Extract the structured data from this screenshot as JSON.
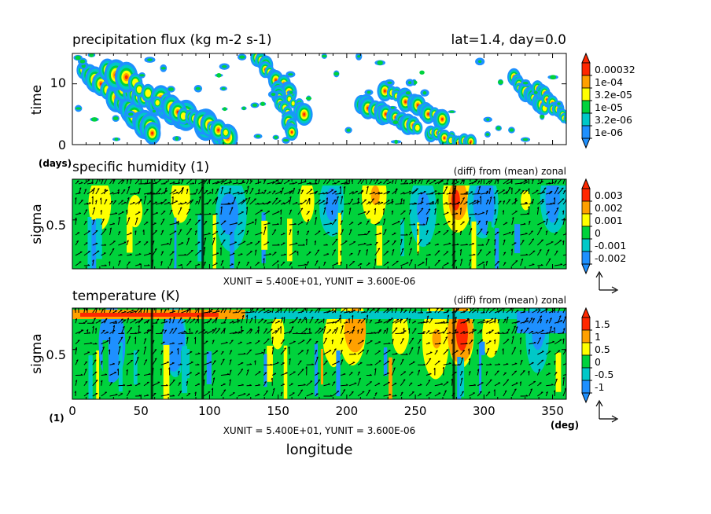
{
  "page": {
    "top_right": "lat=1.4, day=0.0",
    "xaxis_label": "longitude",
    "xaxis_unit": "(deg)",
    "sigma_unit": "(1)",
    "unit_note": "XUNIT = 5.400E+01, YUNIT = 3.600E-06"
  },
  "colors": {
    "blue": "#1e90ff",
    "cyan": "#00c8c8",
    "green": "#00d23c",
    "yellow": "#ffff00",
    "orange": "#ffa000",
    "red": "#ff2800",
    "arrows": "#000000"
  },
  "chart_data": [
    {
      "type": "heatmap",
      "title": "precipitation flux (kg m-2 s-1)",
      "ylabel": "time",
      "yunit": "(days)",
      "xlim": [
        0,
        360
      ],
      "ylim": [
        0,
        15
      ],
      "xticks": [
        0,
        50,
        100,
        150,
        200,
        250,
        300,
        350
      ],
      "yticks": [
        0,
        10
      ],
      "colorbar": {
        "labels": [
          "0.00032",
          "1e-04",
          "3.2e-05",
          "1e-05",
          "3.2e-06",
          "1e-06"
        ],
        "colors": [
          "#ff2800",
          "#ffa000",
          "#ffff00",
          "#00d23c",
          "#00c8c8",
          "#1e90ff"
        ]
      },
      "bands": [
        {
          "x0": 10,
          "t0": 12,
          "x1": 60,
          "t1": 2,
          "w": 1.2
        },
        {
          "x0": 30,
          "t0": 10,
          "x1": 85,
          "t1": 4,
          "w": 1.1
        },
        {
          "x0": 25,
          "t0": 12.5,
          "x1": 115,
          "t1": 1,
          "w": 1.3
        },
        {
          "x0": 60,
          "t0": 7,
          "x1": 110,
          "t1": 2,
          "w": 1.0
        },
        {
          "x0": 135,
          "t0": 14.5,
          "x1": 170,
          "t1": 5,
          "w": 0.9
        },
        {
          "x0": 150,
          "t0": 9,
          "x1": 160,
          "t1": 2,
          "w": 0.8
        },
        {
          "x0": 210,
          "t0": 6.5,
          "x1": 250,
          "t1": 3,
          "w": 0.9
        },
        {
          "x0": 225,
          "t0": 9.5,
          "x1": 270,
          "t1": 4,
          "w": 1.0
        },
        {
          "x0": 260,
          "t0": 2,
          "x1": 290,
          "t1": 0.2,
          "w": 0.7
        },
        {
          "x0": 320,
          "t0": 11,
          "x1": 345,
          "t1": 6,
          "w": 0.9
        },
        {
          "x0": 340,
          "t0": 9,
          "x1": 360,
          "t1": 4,
          "w": 0.7
        }
      ]
    },
    {
      "type": "heatmap",
      "title": "specific humidity (1)",
      "subtitle": "(diff) from (mean) zonal",
      "ylabel": "sigma",
      "xlim": [
        0,
        360
      ],
      "ylim": [
        0.1,
        0.98
      ],
      "yticks": [
        0.5
      ],
      "colorbar": {
        "labels": [
          "0.003",
          "0.002",
          "0.001",
          "0",
          "-0.001",
          "-0.002"
        ],
        "colors": [
          "#ff2800",
          "#ffa000",
          "#ffff00",
          "#00d23c",
          "#00c8c8",
          "#1e90ff"
        ]
      },
      "blobs": [
        {
          "x": 20,
          "s": 0.35,
          "v": 0.0018
        },
        {
          "x": 45,
          "s": 0.4,
          "v": 0.0012
        },
        {
          "x": 80,
          "s": 0.3,
          "v": 0.0015
        },
        {
          "x": 115,
          "s": 0.45,
          "v": -0.0016
        },
        {
          "x": 170,
          "s": 0.3,
          "v": 0.0014
        },
        {
          "x": 190,
          "s": 0.35,
          "v": -0.0012
        },
        {
          "x": 220,
          "s": 0.25,
          "v": 0.002
        },
        {
          "x": 255,
          "s": 0.4,
          "v": -0.0012
        },
        {
          "x": 280,
          "s": 0.3,
          "v": 0.003
        },
        {
          "x": 300,
          "s": 0.35,
          "v": -0.0018
        },
        {
          "x": 330,
          "s": 0.3,
          "v": 0.0011
        },
        {
          "x": 350,
          "s": 0.3,
          "v": -0.0014
        }
      ]
    },
    {
      "type": "heatmap",
      "title": "temperature (K)",
      "subtitle": "(diff) from (mean) zonal",
      "ylabel": "sigma",
      "xlim": [
        0,
        360
      ],
      "ylim": [
        0.1,
        0.98
      ],
      "yticks": [
        0.5
      ],
      "colorbar": {
        "labels": [
          "1.5",
          "1",
          "0.5",
          "0",
          "-0.5",
          "-1"
        ],
        "colors": [
          "#ff2800",
          "#ffa000",
          "#ffff00",
          "#00d23c",
          "#00c8c8",
          "#1e90ff"
        ]
      },
      "blobs": [
        {
          "x": 30,
          "s": 0.45,
          "v": -1.2
        },
        {
          "x": 75,
          "s": 0.4,
          "v": -1.0
        },
        {
          "x": 150,
          "s": 0.35,
          "v": 0.6
        },
        {
          "x": 190,
          "s": 0.4,
          "v": 0.9
        },
        {
          "x": 205,
          "s": 0.3,
          "v": 1.4
        },
        {
          "x": 240,
          "s": 0.35,
          "v": 0.8
        },
        {
          "x": 265,
          "s": 0.4,
          "v": 1.1
        },
        {
          "x": 283,
          "s": 0.35,
          "v": 1.8
        },
        {
          "x": 305,
          "s": 0.35,
          "v": 0.7
        },
        {
          "x": 340,
          "s": 0.35,
          "v": -0.6
        }
      ],
      "top_band_value": 1.6
    }
  ]
}
